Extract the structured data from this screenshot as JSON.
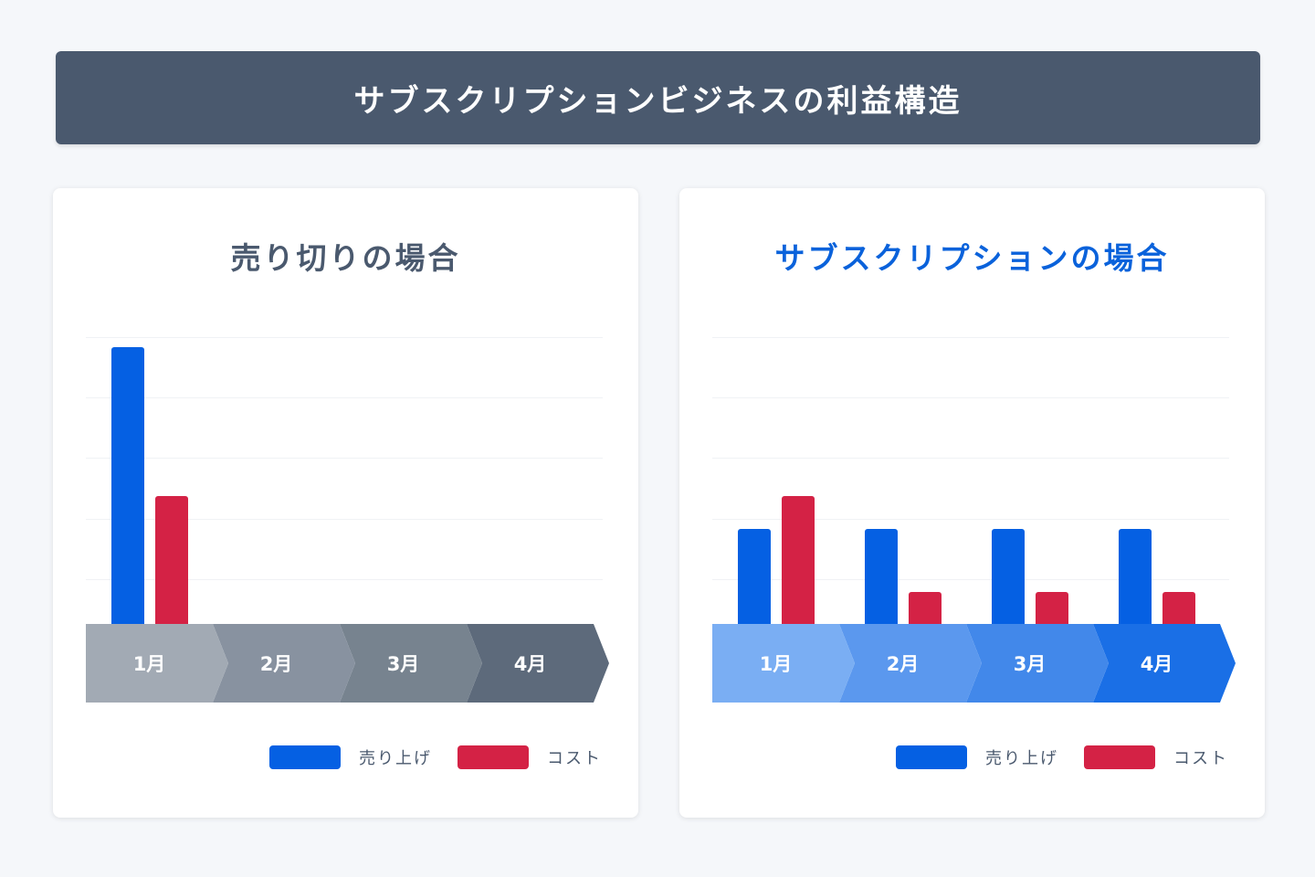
{
  "title": "サブスクリプションビジネスの利益構造",
  "colors": {
    "revenue": "#0560e3",
    "cost": "#d42245",
    "banner_bg": "#4a596e",
    "subscription_title": "#0a62db"
  },
  "legend": {
    "revenue": "売り上げ",
    "cost": "コスト"
  },
  "panels": [
    {
      "title": "売り切りの場合",
      "months": [
        "1月",
        "2月",
        "3月",
        "4月"
      ],
      "arrow_colors": [
        "#a2aab4",
        "#8892a0",
        "#77838f",
        "#5d6a7b"
      ]
    },
    {
      "title": "サブスクリプションの場合",
      "months": [
        "1月",
        "2月",
        "3月",
        "4月"
      ],
      "arrow_colors": [
        "#7aaef3",
        "#5b98ee",
        "#4288ea",
        "#1a6fe6"
      ]
    }
  ],
  "chart_data": [
    {
      "type": "bar",
      "title": "売り切りの場合",
      "categories": [
        "1月",
        "2月",
        "3月",
        "4月"
      ],
      "series": [
        {
          "name": "売り上げ",
          "values": [
            303,
            0,
            0,
            0
          ]
        },
        {
          "name": "コスト",
          "values": [
            140,
            0,
            0,
            0
          ]
        }
      ],
      "xlabel": "",
      "ylabel": "",
      "ylim": [
        0,
        320
      ],
      "grid": true,
      "legend_position": "bottom-right"
    },
    {
      "type": "bar",
      "title": "サブスクリプションの場合",
      "categories": [
        "1月",
        "2月",
        "3月",
        "4月"
      ],
      "series": [
        {
          "name": "売り上げ",
          "values": [
            104,
            104,
            104,
            104
          ]
        },
        {
          "name": "コスト",
          "values": [
            140,
            35,
            35,
            35
          ]
        }
      ],
      "xlabel": "",
      "ylabel": "",
      "ylim": [
        0,
        320
      ],
      "grid": true,
      "legend_position": "bottom-right"
    }
  ]
}
